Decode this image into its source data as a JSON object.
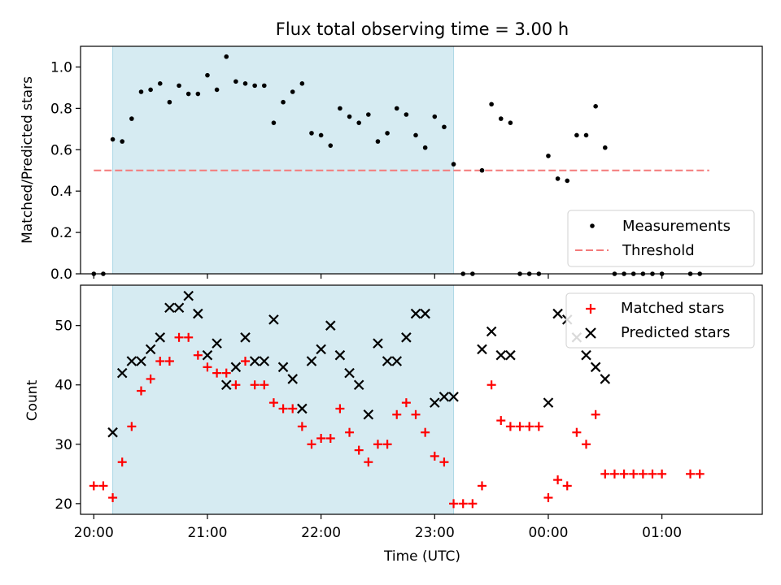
{
  "chart_data": [
    {
      "type": "scatter",
      "title": "Flux total observing time = 3.00 h",
      "ylabel": "Matched/Predicted stars",
      "xlabel": "",
      "ylim": [
        0,
        1.1
      ],
      "x_range": [
        "19:53",
        "01:53"
      ],
      "yticks": [
        "0.0",
        "0.2",
        "0.4",
        "0.6",
        "0.8",
        "1.0"
      ],
      "shaded_interval": [
        "20:10",
        "23:10"
      ],
      "threshold": {
        "value": 0.5,
        "from": "20:00",
        "to": "01:25"
      },
      "legend_position": "lower right",
      "legend": [
        {
          "label": "Measurements",
          "marker": "dot",
          "color": "#000000"
        },
        {
          "label": "Threshold",
          "marker": "dashed-line",
          "color": "#f47a7a"
        }
      ],
      "series": [
        {
          "name": "Measurements",
          "color": "#000000",
          "points": [
            [
              "20:00",
              0.0
            ],
            [
              "20:05",
              0.0
            ],
            [
              "20:10",
              0.65
            ],
            [
              "20:15",
              0.64
            ],
            [
              "20:20",
              0.75
            ],
            [
              "20:25",
              0.88
            ],
            [
              "20:30",
              0.89
            ],
            [
              "20:35",
              0.92
            ],
            [
              "20:40",
              0.83
            ],
            [
              "20:45",
              0.91
            ],
            [
              "20:50",
              0.87
            ],
            [
              "20:55",
              0.87
            ],
            [
              "21:00",
              0.96
            ],
            [
              "21:05",
              0.89
            ],
            [
              "21:10",
              1.05
            ],
            [
              "21:15",
              0.93
            ],
            [
              "21:20",
              0.92
            ],
            [
              "21:25",
              0.91
            ],
            [
              "21:30",
              0.91
            ],
            [
              "21:35",
              0.73
            ],
            [
              "21:40",
              0.83
            ],
            [
              "21:45",
              0.88
            ],
            [
              "21:50",
              0.92
            ],
            [
              "21:55",
              0.68
            ],
            [
              "22:00",
              0.67
            ],
            [
              "22:05",
              0.62
            ],
            [
              "22:10",
              0.8
            ],
            [
              "22:15",
              0.76
            ],
            [
              "22:20",
              0.73
            ],
            [
              "22:25",
              0.77
            ],
            [
              "22:30",
              0.64
            ],
            [
              "22:35",
              0.68
            ],
            [
              "22:40",
              0.8
            ],
            [
              "22:45",
              0.77
            ],
            [
              "22:50",
              0.67
            ],
            [
              "22:55",
              0.61
            ],
            [
              "23:00",
              0.76
            ],
            [
              "23:05",
              0.71
            ],
            [
              "23:10",
              0.53
            ],
            [
              "23:15",
              0.0
            ],
            [
              "23:20",
              0.0
            ],
            [
              "23:25",
              0.5
            ],
            [
              "23:30",
              0.82
            ],
            [
              "23:35",
              0.75
            ],
            [
              "23:40",
              0.73
            ],
            [
              "23:45",
              0.0
            ],
            [
              "23:50",
              0.0
            ],
            [
              "23:55",
              0.0
            ],
            [
              "00:00",
              0.57
            ],
            [
              "00:05",
              0.46
            ],
            [
              "00:10",
              0.45
            ],
            [
              "00:15",
              0.67
            ],
            [
              "00:20",
              0.67
            ],
            [
              "00:25",
              0.81
            ],
            [
              "00:30",
              0.61
            ],
            [
              "00:35",
              0.0
            ],
            [
              "00:40",
              0.0
            ],
            [
              "00:45",
              0.0
            ],
            [
              "00:50",
              0.0
            ],
            [
              "00:55",
              0.0
            ],
            [
              "01:00",
              0.0
            ],
            [
              "01:15",
              0.0
            ],
            [
              "01:20",
              0.0
            ]
          ]
        }
      ]
    },
    {
      "type": "scatter",
      "title": "",
      "xlabel": "Time (UTC)",
      "ylabel": "Count",
      "ylim": [
        18.2,
        56.8
      ],
      "x_range": [
        "19:53",
        "01:53"
      ],
      "xticks": [
        "20:00",
        "21:00",
        "22:00",
        "23:00",
        "00:00",
        "01:00"
      ],
      "yticks": [
        "20",
        "30",
        "40",
        "50"
      ],
      "shaded_interval": [
        "20:10",
        "23:10"
      ],
      "legend_position": "upper right",
      "legend": [
        {
          "label": "Matched stars",
          "marker": "plus",
          "color": "#ff0000"
        },
        {
          "label": "Predicted stars",
          "marker": "x",
          "color": "#000000"
        }
      ],
      "series": [
        {
          "name": "Matched stars",
          "color": "#ff0000",
          "points": [
            [
              "20:00",
              23
            ],
            [
              "20:05",
              23
            ],
            [
              "20:10",
              21
            ],
            [
              "20:15",
              27
            ],
            [
              "20:20",
              33
            ],
            [
              "20:25",
              39
            ],
            [
              "20:30",
              41
            ],
            [
              "20:35",
              44
            ],
            [
              "20:40",
              44
            ],
            [
              "20:45",
              48
            ],
            [
              "20:50",
              48
            ],
            [
              "20:55",
              45
            ],
            [
              "21:00",
              43
            ],
            [
              "21:05",
              42
            ],
            [
              "21:10",
              42
            ],
            [
              "21:15",
              40
            ],
            [
              "21:20",
              44
            ],
            [
              "21:25",
              40
            ],
            [
              "21:30",
              40
            ],
            [
              "21:35",
              37
            ],
            [
              "21:40",
              36
            ],
            [
              "21:45",
              36
            ],
            [
              "21:50",
              33
            ],
            [
              "21:55",
              30
            ],
            [
              "22:00",
              31
            ],
            [
              "22:05",
              31
            ],
            [
              "22:10",
              36
            ],
            [
              "22:15",
              32
            ],
            [
              "22:20",
              29
            ],
            [
              "22:25",
              27
            ],
            [
              "22:30",
              30
            ],
            [
              "22:35",
              30
            ],
            [
              "22:40",
              35
            ],
            [
              "22:45",
              37
            ],
            [
              "22:50",
              35
            ],
            [
              "22:55",
              32
            ],
            [
              "23:00",
              28
            ],
            [
              "23:05",
              27
            ],
            [
              "23:10",
              20
            ],
            [
              "23:15",
              20
            ],
            [
              "23:20",
              20
            ],
            [
              "23:25",
              23
            ],
            [
              "23:30",
              40
            ],
            [
              "23:35",
              34
            ],
            [
              "23:40",
              33
            ],
            [
              "23:45",
              33
            ],
            [
              "23:50",
              33
            ],
            [
              "23:55",
              33
            ],
            [
              "00:00",
              21
            ],
            [
              "00:05",
              24
            ],
            [
              "00:10",
              23
            ],
            [
              "00:15",
              32
            ],
            [
              "00:20",
              30
            ],
            [
              "00:25",
              35
            ],
            [
              "00:30",
              25
            ],
            [
              "00:35",
              25
            ],
            [
              "00:40",
              25
            ],
            [
              "00:45",
              25
            ],
            [
              "00:50",
              25
            ],
            [
              "00:55",
              25
            ],
            [
              "01:00",
              25
            ],
            [
              "01:15",
              25
            ],
            [
              "01:20",
              25
            ]
          ]
        },
        {
          "name": "Predicted stars",
          "color": "#000000",
          "points": [
            [
              "20:10",
              32
            ],
            [
              "20:15",
              42
            ],
            [
              "20:20",
              44
            ],
            [
              "20:25",
              44
            ],
            [
              "20:30",
              46
            ],
            [
              "20:35",
              48
            ],
            [
              "20:40",
              53
            ],
            [
              "20:45",
              53
            ],
            [
              "20:50",
              55
            ],
            [
              "20:55",
              52
            ],
            [
              "21:00",
              45
            ],
            [
              "21:05",
              47
            ],
            [
              "21:10",
              40
            ],
            [
              "21:15",
              43
            ],
            [
              "21:20",
              48
            ],
            [
              "21:25",
              44
            ],
            [
              "21:30",
              44
            ],
            [
              "21:35",
              51
            ],
            [
              "21:40",
              43
            ],
            [
              "21:45",
              41
            ],
            [
              "21:50",
              36
            ],
            [
              "21:55",
              44
            ],
            [
              "22:00",
              46
            ],
            [
              "22:05",
              50
            ],
            [
              "22:10",
              45
            ],
            [
              "22:15",
              42
            ],
            [
              "22:20",
              40
            ],
            [
              "22:25",
              35
            ],
            [
              "22:30",
              47
            ],
            [
              "22:35",
              44
            ],
            [
              "22:40",
              44
            ],
            [
              "22:45",
              48
            ],
            [
              "22:50",
              52
            ],
            [
              "22:55",
              52
            ],
            [
              "23:00",
              37
            ],
            [
              "23:05",
              38
            ],
            [
              "23:10",
              38
            ],
            [
              "23:25",
              46
            ],
            [
              "23:30",
              49
            ],
            [
              "23:35",
              45
            ],
            [
              "23:40",
              45
            ],
            [
              "00:00",
              37
            ],
            [
              "00:05",
              52
            ],
            [
              "00:10",
              51
            ],
            [
              "00:15",
              48
            ],
            [
              "00:20",
              45
            ],
            [
              "00:25",
              43
            ],
            [
              "00:30",
              41
            ]
          ]
        }
      ]
    }
  ]
}
